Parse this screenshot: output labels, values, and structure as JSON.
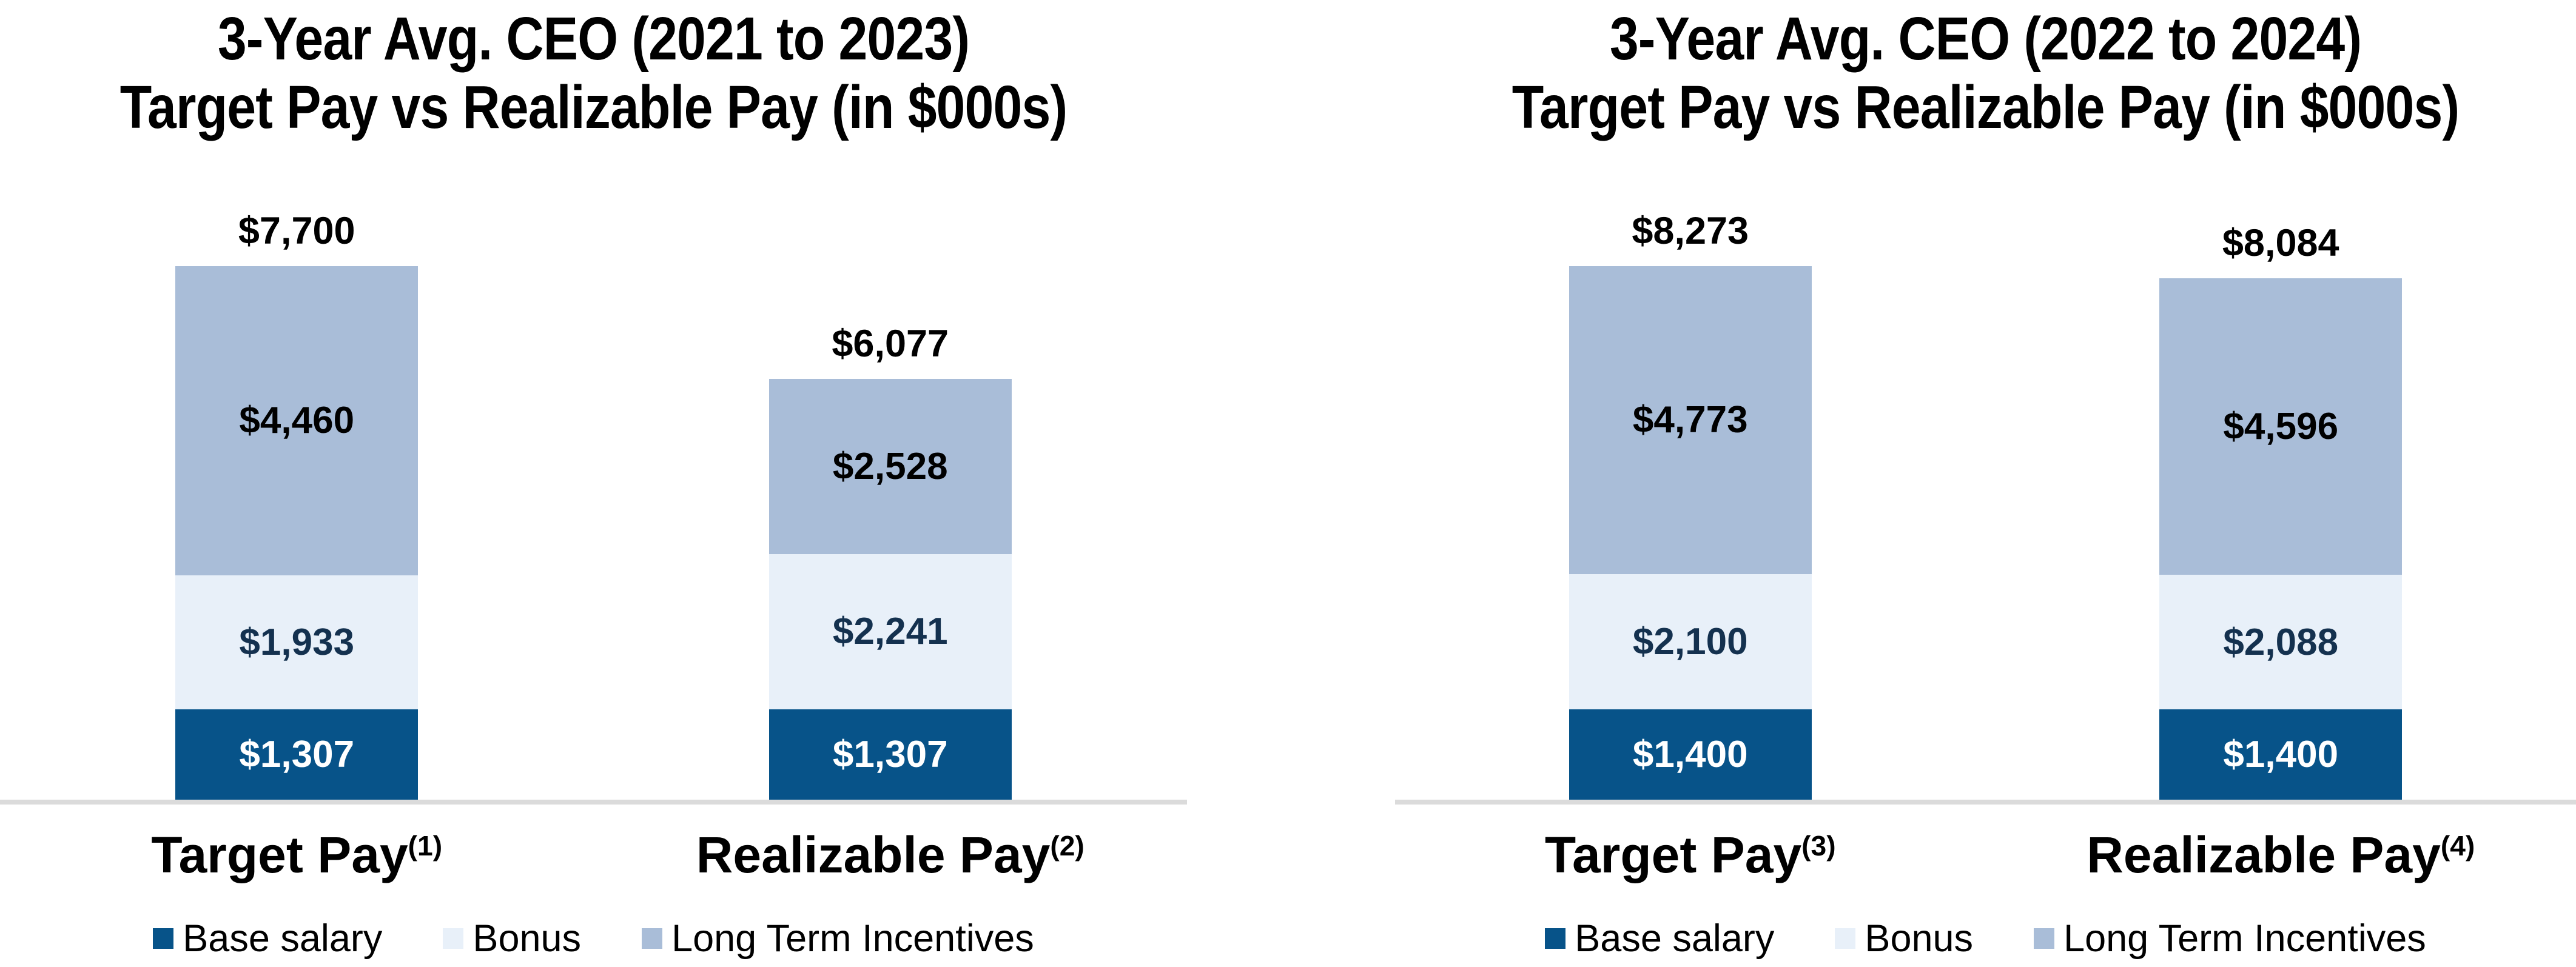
{
  "colors": {
    "base_salary": "#075389",
    "bonus": "#E8F0F9",
    "long_term_incentives": "#A9BDD8",
    "axis_line": "#DBDBDB",
    "total_label_text": "#000000",
    "lti_label_text": "#000000",
    "bonus_label_text": "#14314F",
    "base_label_text": "#FFFFFF"
  },
  "charts": [
    {
      "title_line1": "3-Year Avg. CEO (2021 to 2023)",
      "title_line2": "Target Pay vs Realizable Pay (in $000s)",
      "bars": [
        {
          "axis_label": "Target Pay",
          "axis_footnote": "(1)",
          "total_label": "$7,700",
          "total_value": 7700,
          "segments": [
            {
              "name": "Base salary",
              "value": 1307,
              "label": "$1,307"
            },
            {
              "name": "Bonus",
              "value": 1933,
              "label": "$1,933"
            },
            {
              "name": "Long Term Incentives",
              "value": 4460,
              "label": "$4,460"
            }
          ]
        },
        {
          "axis_label": "Realizable Pay",
          "axis_footnote": "(2)",
          "total_label": "$6,077",
          "total_value": 6077,
          "segments": [
            {
              "name": "Base salary",
              "value": 1307,
              "label": "$1,307"
            },
            {
              "name": "Bonus",
              "value": 2241,
              "label": "$2,241"
            },
            {
              "name": "Long Term Incentives",
              "value": 2528,
              "label": "$2,528"
            }
          ]
        }
      ],
      "legend": [
        {
          "label": "Base salary",
          "color_key": "base_salary"
        },
        {
          "label": "Bonus",
          "color_key": "bonus"
        },
        {
          "label": "Long Term Incentives",
          "color_key": "long_term_incentives"
        }
      ]
    },
    {
      "title_line1": "3-Year Avg. CEO (2022 to 2024)",
      "title_line2": "Target Pay vs Realizable Pay (in $000s)",
      "bars": [
        {
          "axis_label": "Target Pay",
          "axis_footnote": "(3)",
          "total_label": "$8,273",
          "total_value": 8273,
          "segments": [
            {
              "name": "Base salary",
              "value": 1400,
              "label": "$1,400"
            },
            {
              "name": "Bonus",
              "value": 2100,
              "label": "$2,100"
            },
            {
              "name": "Long Term Incentives",
              "value": 4773,
              "label": "$4,773"
            }
          ]
        },
        {
          "axis_label": "Realizable Pay",
          "axis_footnote": "(4)",
          "total_label": "$8,084",
          "total_value": 8084,
          "segments": [
            {
              "name": "Base salary",
              "value": 1400,
              "label": "$1,400"
            },
            {
              "name": "Bonus",
              "value": 2088,
              "label": "$2,088"
            },
            {
              "name": "Long Term Incentives",
              "value": 4596,
              "label": "$4,596"
            }
          ]
        }
      ],
      "legend": [
        {
          "label": "Base salary",
          "color_key": "base_salary"
        },
        {
          "label": "Bonus",
          "color_key": "bonus"
        },
        {
          "label": "Long Term Incentives",
          "color_key": "long_term_incentives"
        }
      ]
    }
  ],
  "chart_data": [
    {
      "type": "bar",
      "stacked": true,
      "title": "3-Year Avg. CEO (2021 to 2023) Target Pay vs Realizable Pay (in $000s)",
      "unit": "$000s",
      "categories": [
        "Target Pay (1)",
        "Realizable Pay (2)"
      ],
      "series": [
        {
          "name": "Base salary",
          "values": [
            1307,
            1307
          ]
        },
        {
          "name": "Bonus",
          "values": [
            1933,
            2241
          ]
        },
        {
          "name": "Long Term Incentives",
          "values": [
            4460,
            2528
          ]
        }
      ],
      "bar_totals": [
        7700,
        6077
      ],
      "ylim": [
        0,
        7700
      ],
      "grid": false,
      "data_labels": true,
      "legend_position": "bottom"
    },
    {
      "type": "bar",
      "stacked": true,
      "title": "3-Year Avg. CEO (2022 to 2024) Target Pay vs Realizable Pay (in $000s)",
      "unit": "$000s",
      "categories": [
        "Target Pay (3)",
        "Realizable Pay (4)"
      ],
      "series": [
        {
          "name": "Base salary",
          "values": [
            1400,
            1400
          ]
        },
        {
          "name": "Bonus",
          "values": [
            2100,
            2088
          ]
        },
        {
          "name": "Long Term Incentives",
          "values": [
            4773,
            4596
          ]
        }
      ],
      "bar_totals": [
        8273,
        8084
      ],
      "ylim": [
        0,
        8273
      ],
      "grid": false,
      "data_labels": true,
      "legend_position": "bottom"
    }
  ]
}
